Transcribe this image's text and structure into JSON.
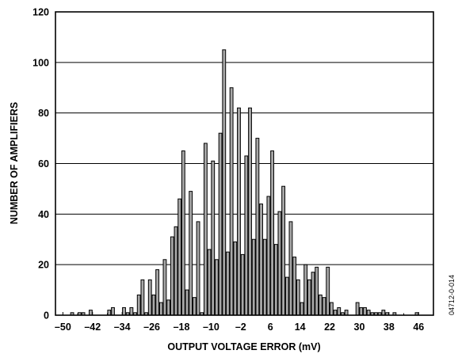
{
  "figure_code": "04712-0-014",
  "chart_data": {
    "type": "bar",
    "xlabel": "OUTPUT VOLTAGE ERROR (mV)",
    "ylabel": "NUMBER OF AMPLIFIERS",
    "xlim": [
      -52,
      50
    ],
    "ylim": [
      0,
      120
    ],
    "grid": true,
    "x_ticks": [
      -50,
      -42,
      -34,
      -26,
      -18,
      -10,
      -2,
      6,
      14,
      22,
      30,
      38,
      46
    ],
    "y_ticks": [
      0,
      20,
      40,
      60,
      80,
      100,
      120
    ],
    "x_tick_labels": [
      "–50",
      "–42",
      "–34",
      "–26",
      "–18",
      "–10",
      "–2",
      "6",
      "14",
      "22",
      "30",
      "38",
      "46"
    ],
    "y_tick_labels": [
      "0",
      "20",
      "40",
      "60",
      "80",
      "100",
      "120"
    ],
    "x": [
      -47.5,
      -45.5,
      -44.5,
      -42.5,
      -41.5,
      -40.5,
      -37.5,
      -36.5,
      -35.5,
      -34.5,
      -33.5,
      -32.5,
      -31.5,
      -30.5,
      -29.5,
      -28.5,
      -27.5,
      -26.5,
      -25.5,
      -24.5,
      -23.5,
      -22.5,
      -21.5,
      -20.5,
      -19.5,
      -18.5,
      -17.5,
      -16.5,
      -15.5,
      -14.5,
      -13.5,
      -12.5,
      -11.5,
      -10.5,
      -9.5,
      -8.5,
      -7.5,
      -6.5,
      -5.5,
      -4.5,
      -3.5,
      -2.5,
      -1.5,
      -0.5,
      0.5,
      1.5,
      2.5,
      3.5,
      4.5,
      5.5,
      6.5,
      7.5,
      8.5,
      9.5,
      10.5,
      11.5,
      12.5,
      13.5,
      14.5,
      15.5,
      16.5,
      17.5,
      18.5,
      19.5,
      20.5,
      21.5,
      22.5,
      23.5,
      24.5,
      25.5,
      26.5,
      27.5,
      28.5,
      29.5,
      30.5,
      31.5,
      32.5,
      33.5,
      34.5,
      35.5,
      36.5,
      37.5,
      38.5,
      39.5,
      40.5,
      45.5
    ],
    "values": [
      1,
      1,
      1,
      2,
      0,
      0,
      2,
      3,
      0,
      0,
      3,
      1,
      3,
      1,
      8,
      14,
      1,
      14,
      8,
      18,
      5,
      22,
      6,
      31,
      35,
      46,
      65,
      10,
      49,
      7,
      37,
      1,
      68,
      26,
      61,
      22,
      72,
      105,
      25,
      90,
      29,
      82,
      24,
      63,
      82,
      30,
      70,
      44,
      30,
      47,
      65,
      28,
      41,
      51,
      15,
      37,
      23,
      14,
      5,
      20,
      14,
      17,
      19,
      8,
      7,
      19,
      5,
      2,
      3,
      1,
      2,
      0,
      0,
      5,
      3,
      3,
      2,
      1,
      1,
      1,
      2,
      1,
      0,
      1,
      0,
      1
    ]
  }
}
